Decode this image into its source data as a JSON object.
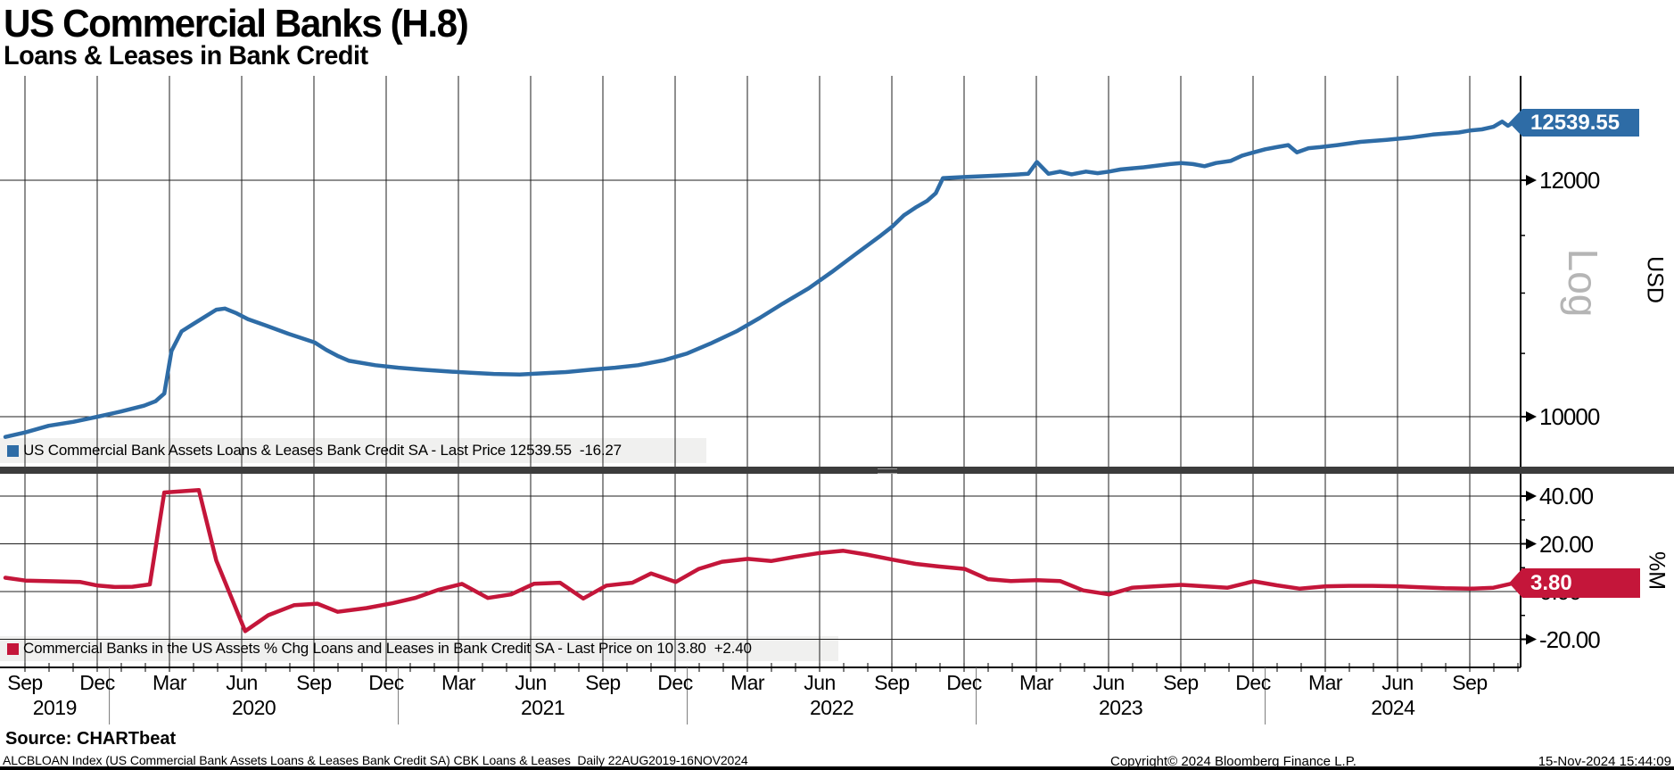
{
  "header": {
    "title": "US Commercial Banks (H.8)",
    "subtitle": "Loans & Leases in Bank Credit"
  },
  "panels": {
    "top": {
      "legend": "US Commercial Bank Assets Loans & Leases Bank Credit SA - Last Price 12539.55  -16.27",
      "badge": "12539.55",
      "unit_label": "USD",
      "scale_label": "Log",
      "tick_labels": [
        "12000",
        "10000"
      ]
    },
    "bottom": {
      "legend": "Commercial Banks in the US Assets % Chg Loans and Leases in Bank Credit SA - Last Price on 10 3.80  +2.40",
      "badge": "3.80",
      "unit_label": "%M",
      "tick_labels": [
        "40.00",
        "20.00",
        "0.00",
        "-20.00"
      ]
    }
  },
  "x_axis": {
    "month_labels": [
      "Sep",
      "Dec",
      "Mar",
      "Jun",
      "Sep",
      "Dec",
      "Mar",
      "Jun",
      "Sep",
      "Dec",
      "Mar",
      "Jun",
      "Sep",
      "Dec",
      "Mar",
      "Jun",
      "Sep",
      "Dec",
      "Mar",
      "Jun",
      "Sep"
    ],
    "year_labels": [
      "2019",
      "2020",
      "2021",
      "2022",
      "2023",
      "2024"
    ],
    "start": "22AUG2019",
    "end": "16NOV2024"
  },
  "footer": {
    "source": "Source: CHARTbeat",
    "security_info": "ALCBLOAN Index (US Commercial Bank Assets Loans & Leases Bank Credit SA) CBK Loans & Leases  Daily 22AUG2019-16NOV2024",
    "copyright": "Copyright© 2024 Bloomberg Finance L.P.",
    "timestamp": "15-Nov-2024 15:44:09"
  },
  "chart_data": [
    {
      "type": "line",
      "name": "US Commercial Bank Assets Loans & Leases Bank Credit SA",
      "ylabel": "USD",
      "yscale": "log",
      "grid": "on",
      "legend_position": "bottom-left",
      "last_price": 12539.55,
      "net_change": -16.27,
      "line_color": "#2e6ca6",
      "yticks": [
        12000,
        10000
      ],
      "minor_yticks": [
        12500,
        11500,
        11000,
        10500
      ],
      "ylim": [
        9820,
        13060
      ],
      "x_years": [
        2019.64,
        2019.71,
        2019.79,
        2019.875,
        2019.96,
        2020.04,
        2020.12,
        2020.16,
        2020.19,
        2020.215,
        2020.25,
        2020.29,
        2020.33,
        2020.37,
        2020.4,
        2020.44,
        2020.48,
        2020.54,
        2020.62,
        2020.71,
        2020.75,
        2020.79,
        2020.83,
        2020.92,
        2021.0,
        2021.08,
        2021.17,
        2021.25,
        2021.33,
        2021.42,
        2021.5,
        2021.58,
        2021.67,
        2021.75,
        2021.83,
        2021.92,
        2022.0,
        2022.08,
        2022.17,
        2022.25,
        2022.33,
        2022.42,
        2022.5,
        2022.58,
        2022.67,
        2022.71,
        2022.75,
        2022.79,
        2022.83,
        2022.86,
        2022.885,
        2022.96,
        2023.04,
        2023.12,
        2023.18,
        2023.21,
        2023.25,
        2023.29,
        2023.33,
        2023.38,
        2023.42,
        2023.46,
        2023.5,
        2023.58,
        2023.67,
        2023.71,
        2023.75,
        2023.79,
        2023.83,
        2023.88,
        2023.92,
        2023.96,
        2024.0,
        2024.04,
        2024.08,
        2024.11,
        2024.15,
        2024.19,
        2024.25,
        2024.33,
        2024.42,
        2024.5,
        2024.58,
        2024.67,
        2024.71,
        2024.75,
        2024.79,
        2024.82,
        2024.84,
        2024.855
      ],
      "values": [
        9845,
        9880,
        9930,
        9960,
        10000,
        10040,
        10085,
        10120,
        10180,
        10520,
        10680,
        10740,
        10800,
        10860,
        10870,
        10830,
        10780,
        10730,
        10660,
        10590,
        10530,
        10480,
        10440,
        10405,
        10385,
        10370,
        10355,
        10345,
        10335,
        10330,
        10340,
        10350,
        10370,
        10385,
        10405,
        10445,
        10500,
        10580,
        10680,
        10790,
        10910,
        11040,
        11180,
        11330,
        11500,
        11580,
        11680,
        11750,
        11810,
        11880,
        12020,
        12030,
        12040,
        12050,
        12060,
        12170,
        12060,
        12080,
        12055,
        12080,
        12065,
        12080,
        12100,
        12120,
        12150,
        12160,
        12150,
        12130,
        12160,
        12180,
        12230,
        12260,
        12290,
        12310,
        12330,
        12260,
        12300,
        12310,
        12330,
        12360,
        12380,
        12400,
        12430,
        12450,
        12470,
        12480,
        12505,
        12555,
        12515,
        12540
      ]
    },
    {
      "type": "line",
      "name": "Commercial Banks in the US Assets % Chg Loans and Leases in Bank Credit SA",
      "ylabel": "%M",
      "yscale": "linear",
      "grid": "on",
      "legend_position": "bottom-left",
      "last_price": 3.8,
      "net_change": 2.4,
      "as_of_day": "10",
      "line_color": "#c4163a",
      "yticks": [
        40,
        20,
        0,
        -20
      ],
      "minor_yticks": [
        30,
        10,
        -10
      ],
      "ylim": [
        -28,
        46
      ],
      "x_years": [
        2019.64,
        2019.71,
        2019.81,
        2019.9,
        2019.96,
        2020.02,
        2020.08,
        2020.14,
        2020.19,
        2020.31,
        2020.37,
        2020.47,
        2020.55,
        2020.64,
        2020.72,
        2020.79,
        2020.89,
        2020.98,
        2021.06,
        2021.14,
        2021.22,
        2021.31,
        2021.39,
        2021.47,
        2021.56,
        2021.64,
        2021.72,
        2021.81,
        2021.875,
        2021.96,
        2022.04,
        2022.12,
        2022.21,
        2022.29,
        2022.37,
        2022.46,
        2022.54,
        2022.62,
        2022.71,
        2022.79,
        2022.87,
        2022.96,
        2023.04,
        2023.12,
        2023.21,
        2023.29,
        2023.37,
        2023.46,
        2023.54,
        2023.62,
        2023.71,
        2023.79,
        2023.87,
        2023.96,
        2024.04,
        2024.12,
        2024.21,
        2024.29,
        2024.37,
        2024.46,
        2024.54,
        2024.62,
        2024.71,
        2024.79,
        2024.87
      ],
      "values": [
        5.8,
        4.6,
        4.3,
        4.0,
        2.5,
        1.9,
        2.0,
        3.0,
        41.5,
        42.5,
        13.0,
        -16.6,
        -9.9,
        -5.7,
        -5.1,
        -8.5,
        -6.9,
        -4.9,
        -2.6,
        0.8,
        3.2,
        -2.7,
        -1.2,
        3.3,
        3.7,
        -2.9,
        2.5,
        3.7,
        7.6,
        4.0,
        9.5,
        12.5,
        13.7,
        12.8,
        14.5,
        16.2,
        17.1,
        15.5,
        13.4,
        11.6,
        10.5,
        9.5,
        5.2,
        4.4,
        4.8,
        4.4,
        0.5,
        -1.2,
        1.6,
        2.2,
        2.8,
        2.2,
        1.6,
        4.3,
        2.6,
        1.2,
        2.2,
        2.4,
        2.4,
        2.2,
        1.8,
        1.4,
        1.2,
        1.6,
        3.8
      ]
    }
  ]
}
